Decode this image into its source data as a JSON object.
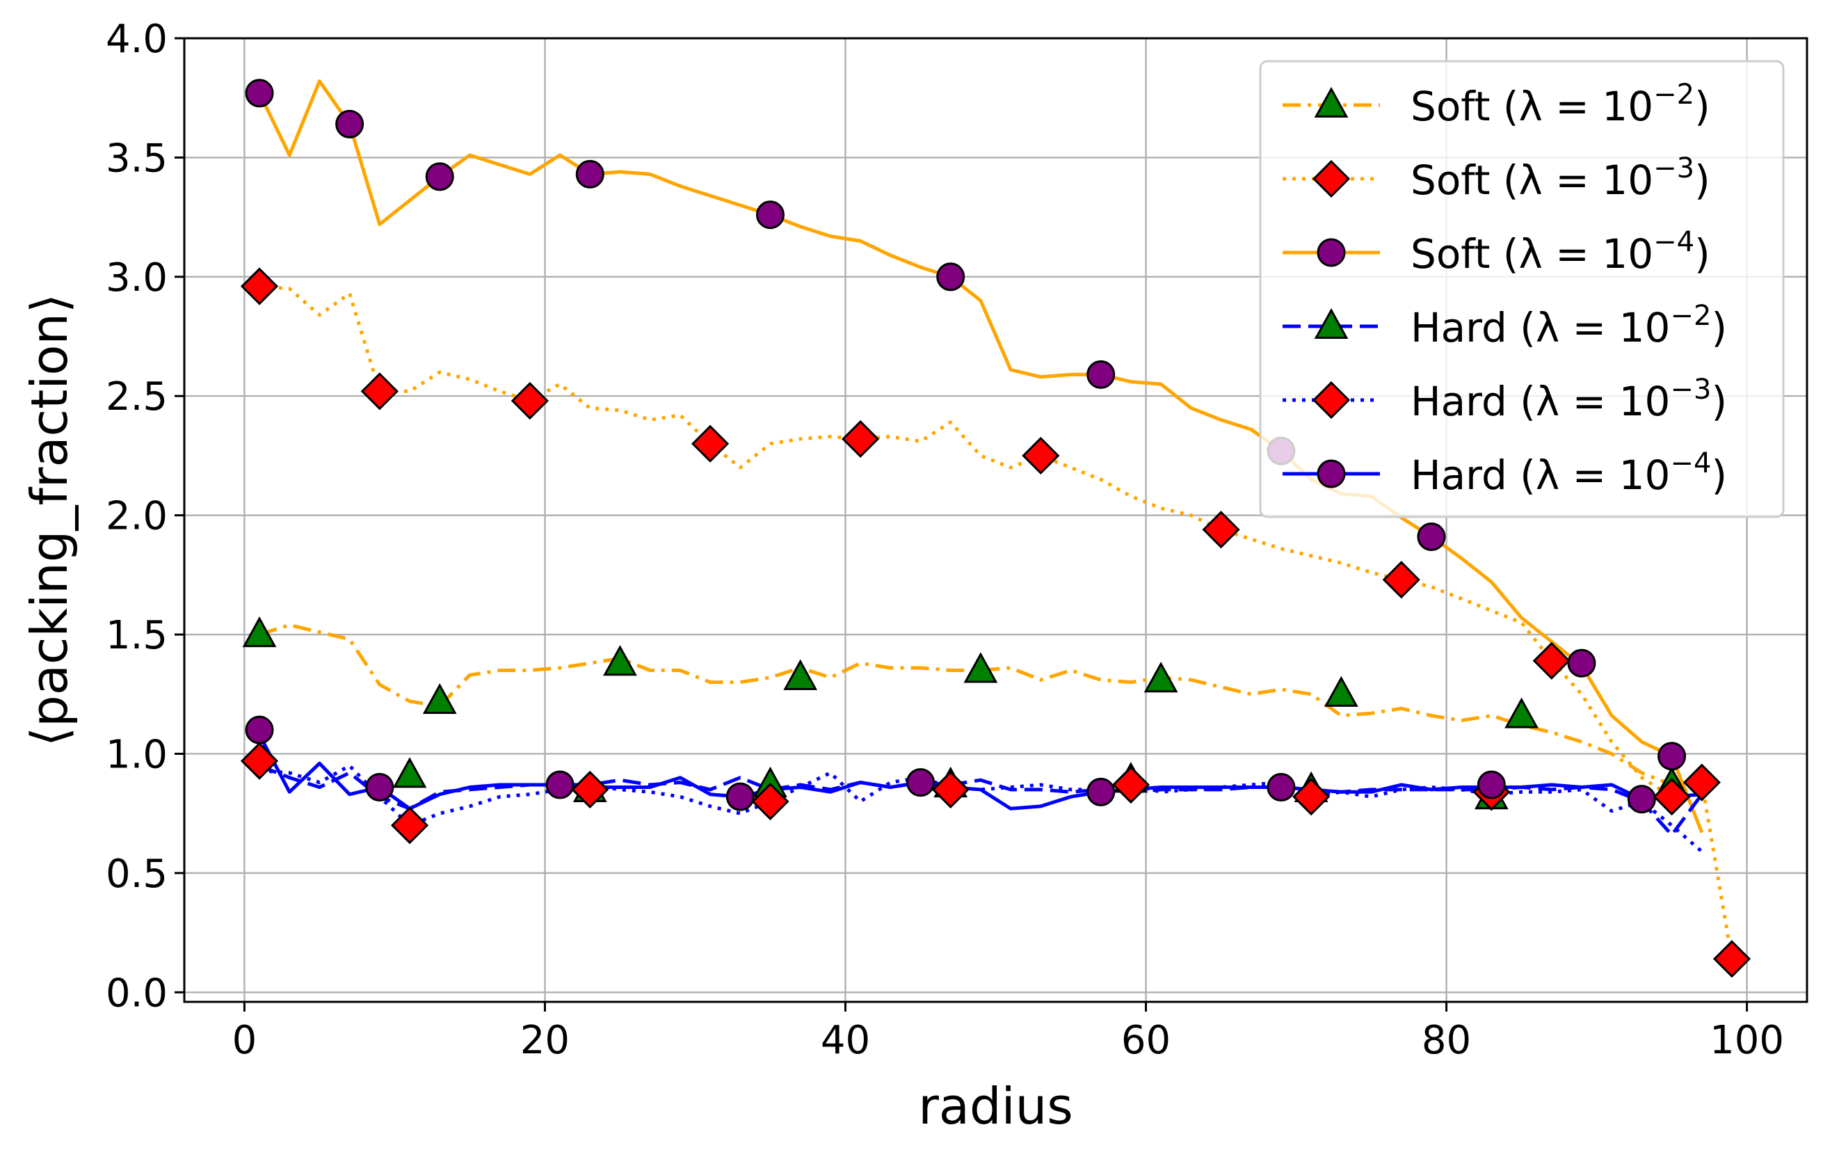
{
  "chart_data": {
    "type": "line",
    "xlabel": "radius",
    "ylabel": "⟨packing_fraction⟩",
    "xlim": [
      -4,
      104
    ],
    "ylim": [
      -0.04,
      4.0
    ],
    "xticks": [
      0,
      20,
      40,
      60,
      80,
      100
    ],
    "yticks": [
      0.0,
      0.5,
      1.0,
      1.5,
      2.0,
      2.5,
      3.0,
      3.5,
      4.0
    ],
    "ytick_labels": [
      "0.0",
      "0.5",
      "1.0",
      "1.5",
      "2.0",
      "2.5",
      "3.0",
      "3.5",
      "4.0"
    ],
    "grid": true,
    "legend_position": "top-right",
    "series": [
      {
        "name": "Soft (λ = 10⁻²)",
        "legend_base": "Soft (λ = 10",
        "legend_exp": "−2",
        "color": "#ffa500",
        "linestyle": "dashdot",
        "marker": "triangle",
        "marker_color": "#008000",
        "x": [
          1,
          3,
          5,
          7,
          9,
          11,
          13,
          15,
          17,
          19,
          21,
          23,
          25,
          27,
          29,
          31,
          33,
          35,
          37,
          39,
          41,
          43,
          45,
          47,
          49,
          51,
          53,
          55,
          57,
          59,
          61,
          63,
          65,
          67,
          69,
          71,
          73,
          75,
          77,
          79,
          81,
          83,
          85,
          87,
          89,
          91,
          93,
          95,
          97
        ],
        "y": [
          1.5,
          1.54,
          1.51,
          1.48,
          1.29,
          1.22,
          1.2,
          1.33,
          1.35,
          1.35,
          1.36,
          1.38,
          1.4,
          1.35,
          1.35,
          1.3,
          1.3,
          1.32,
          1.36,
          1.32,
          1.38,
          1.36,
          1.36,
          1.35,
          1.35,
          1.36,
          1.31,
          1.35,
          1.31,
          1.3,
          1.32,
          1.31,
          1.28,
          1.25,
          1.27,
          1.25,
          1.16,
          1.17,
          1.19,
          1.16,
          1.14,
          1.16,
          1.12,
          1.09,
          1.05,
          1.0,
          0.92,
          0.87,
          0.82
        ],
        "marker_x": [
          1,
          11,
          13,
          23,
          25,
          35,
          37,
          47,
          49,
          59,
          61,
          71,
          73,
          83,
          85,
          95
        ],
        "marker_y": [
          1.5,
          0.91,
          1.22,
          0.85,
          1.38,
          0.87,
          1.32,
          0.87,
          1.35,
          0.89,
          1.31,
          0.85,
          1.25,
          0.82,
          1.16,
          0.87
        ]
      },
      {
        "name": "Soft (λ = 10⁻³)",
        "legend_base": "Soft (λ = 10",
        "legend_exp": "−3",
        "color": "#ffa500",
        "linestyle": "dotted",
        "marker": "diamond",
        "marker_color": "#ff0000",
        "x": [
          1,
          3,
          5,
          7,
          9,
          11,
          13,
          15,
          17,
          19,
          21,
          23,
          25,
          27,
          29,
          31,
          33,
          35,
          37,
          39,
          41,
          43,
          45,
          47,
          49,
          51,
          53,
          55,
          57,
          59,
          61,
          63,
          65,
          67,
          69,
          71,
          73,
          75,
          77,
          79,
          81,
          83,
          85,
          87,
          89,
          91,
          93,
          95,
          97,
          99
        ],
        "y": [
          2.96,
          2.95,
          2.84,
          2.93,
          2.52,
          2.52,
          2.6,
          2.57,
          2.52,
          2.48,
          2.55,
          2.45,
          2.44,
          2.4,
          2.42,
          2.3,
          2.2,
          2.3,
          2.32,
          2.33,
          2.32,
          2.33,
          2.31,
          2.39,
          2.25,
          2.2,
          2.25,
          2.2,
          2.15,
          2.08,
          2.03,
          2.0,
          1.94,
          1.9,
          1.86,
          1.83,
          1.8,
          1.76,
          1.73,
          1.7,
          1.65,
          1.6,
          1.55,
          1.39,
          1.25,
          1.05,
          0.9,
          0.82,
          0.88,
          0.14
        ],
        "marker_x": [
          1,
          9,
          11,
          19,
          23,
          31,
          35,
          41,
          47,
          53,
          59,
          65,
          71,
          77,
          83,
          87,
          95,
          97,
          99
        ],
        "marker_y": [
          0.97,
          2.52,
          0.7,
          2.48,
          0.85,
          2.3,
          0.8,
          2.32,
          0.85,
          2.25,
          0.87,
          1.94,
          0.82,
          1.73,
          0.84,
          1.39,
          0.82,
          0.88,
          0.14
        ],
        "extra_marker_x": [
          1
        ],
        "extra_marker_y": [
          2.96
        ]
      },
      {
        "name": "Soft (λ = 10⁻⁴)",
        "legend_base": "Soft (λ = 10",
        "legend_exp": "−4",
        "color": "#ffa500",
        "linestyle": "solid",
        "marker": "circle",
        "marker_color": "#800080",
        "x": [
          1,
          3,
          5,
          7,
          9,
          11,
          13,
          15,
          17,
          19,
          21,
          23,
          25,
          27,
          29,
          31,
          33,
          35,
          37,
          39,
          41,
          43,
          45,
          47,
          49,
          51,
          53,
          55,
          57,
          59,
          61,
          63,
          65,
          67,
          69,
          71,
          73,
          75,
          77,
          79,
          81,
          83,
          85,
          87,
          89,
          91,
          93,
          95,
          97
        ],
        "y": [
          3.77,
          3.51,
          3.82,
          3.64,
          3.22,
          3.32,
          3.42,
          3.51,
          3.47,
          3.43,
          3.51,
          3.43,
          3.44,
          3.43,
          3.38,
          3.34,
          3.3,
          3.26,
          3.21,
          3.17,
          3.15,
          3.09,
          3.04,
          3.0,
          2.9,
          2.61,
          2.58,
          2.59,
          2.59,
          2.56,
          2.55,
          2.45,
          2.4,
          2.36,
          2.27,
          2.15,
          2.09,
          2.08,
          1.99,
          1.91,
          1.82,
          1.72,
          1.57,
          1.47,
          1.37,
          1.16,
          1.05,
          0.99,
          0.67
        ],
        "marker_x": [
          1,
          7,
          13,
          23,
          35,
          47,
          57,
          69,
          79,
          89,
          1,
          9,
          21,
          33,
          45,
          57,
          69,
          83,
          93,
          95
        ],
        "marker_y": [
          3.77,
          3.64,
          3.42,
          3.43,
          3.26,
          3.0,
          2.59,
          2.27,
          1.91,
          1.38,
          1.1,
          0.86,
          0.87,
          0.82,
          0.88,
          0.84,
          0.86,
          0.87,
          0.81,
          0.99
        ]
      },
      {
        "name": "Hard (λ = 10⁻²)",
        "legend_base": "Hard (λ = 10",
        "legend_exp": "−2",
        "color": "#0000ff",
        "linestyle": "dashed",
        "marker": "triangle",
        "marker_color": "#008000",
        "x": [
          1,
          3,
          5,
          7,
          9,
          11,
          13,
          15,
          17,
          19,
          21,
          23,
          25,
          27,
          29,
          31,
          33,
          35,
          37,
          39,
          41,
          43,
          45,
          47,
          49,
          51,
          53,
          55,
          57,
          59,
          61,
          63,
          65,
          67,
          69,
          71,
          73,
          75,
          77,
          79,
          81,
          83,
          85,
          87,
          89,
          91,
          93,
          95,
          97
        ],
        "y": [
          0.95,
          0.9,
          0.86,
          0.92,
          0.82,
          0.77,
          0.84,
          0.85,
          0.86,
          0.87,
          0.87,
          0.87,
          0.89,
          0.87,
          0.88,
          0.85,
          0.9,
          0.85,
          0.87,
          0.85,
          0.88,
          0.86,
          0.88,
          0.87,
          0.89,
          0.85,
          0.85,
          0.84,
          0.85,
          0.84,
          0.85,
          0.85,
          0.85,
          0.86,
          0.86,
          0.85,
          0.84,
          0.85,
          0.85,
          0.85,
          0.85,
          0.85,
          0.86,
          0.85,
          0.86,
          0.85,
          0.8,
          0.66,
          0.83
        ]
      },
      {
        "name": "Hard (λ = 10⁻³)",
        "legend_base": "Hard (λ = 10",
        "legend_exp": "−3",
        "color": "#0000ff",
        "linestyle": "dotted",
        "marker": "diamond",
        "marker_color": "#ff0000",
        "x": [
          1,
          3,
          5,
          7,
          9,
          11,
          13,
          15,
          17,
          19,
          21,
          23,
          25,
          27,
          29,
          31,
          33,
          35,
          37,
          39,
          41,
          43,
          45,
          47,
          49,
          51,
          53,
          55,
          57,
          59,
          61,
          63,
          65,
          67,
          69,
          71,
          73,
          75,
          77,
          79,
          81,
          83,
          85,
          87,
          89,
          91,
          93,
          95,
          97
        ],
        "y": [
          0.93,
          0.92,
          0.88,
          0.95,
          0.82,
          0.7,
          0.75,
          0.78,
          0.82,
          0.83,
          0.85,
          0.87,
          0.85,
          0.84,
          0.82,
          0.78,
          0.75,
          0.8,
          0.86,
          0.92,
          0.8,
          0.88,
          0.9,
          0.86,
          0.85,
          0.86,
          0.87,
          0.85,
          0.85,
          0.87,
          0.84,
          0.85,
          0.86,
          0.87,
          0.88,
          0.82,
          0.84,
          0.82,
          0.85,
          0.86,
          0.85,
          0.83,
          0.84,
          0.84,
          0.85,
          0.76,
          0.8,
          0.7,
          0.59
        ]
      },
      {
        "name": "Hard (λ = 10⁻⁴)",
        "legend_base": "Hard (λ = 10",
        "legend_exp": "−4",
        "color": "#0000ff",
        "linestyle": "solid",
        "marker": "circle",
        "marker_color": "#800080",
        "x": [
          1,
          3,
          5,
          7,
          9,
          11,
          13,
          15,
          17,
          19,
          21,
          23,
          25,
          27,
          29,
          31,
          33,
          35,
          37,
          39,
          41,
          43,
          45,
          47,
          49,
          51,
          53,
          55,
          57,
          59,
          61,
          63,
          65,
          67,
          69,
          71,
          73,
          75,
          77,
          79,
          81,
          83,
          85,
          87,
          89,
          91,
          93,
          95,
          97
        ],
        "y": [
          1.08,
          0.84,
          0.96,
          0.83,
          0.86,
          0.77,
          0.83,
          0.86,
          0.87,
          0.87,
          0.87,
          0.86,
          0.86,
          0.86,
          0.9,
          0.83,
          0.82,
          0.85,
          0.86,
          0.84,
          0.88,
          0.86,
          0.88,
          0.86,
          0.85,
          0.77,
          0.78,
          0.82,
          0.84,
          0.85,
          0.86,
          0.86,
          0.86,
          0.86,
          0.86,
          0.85,
          0.84,
          0.84,
          0.87,
          0.85,
          0.86,
          0.86,
          0.86,
          0.87,
          0.86,
          0.87,
          0.81,
          0.82,
          0.83
        ]
      }
    ]
  }
}
